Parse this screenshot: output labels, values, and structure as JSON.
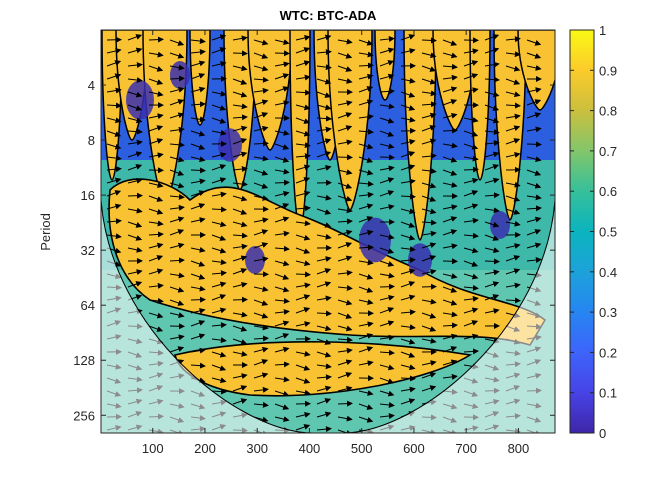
{
  "chart_data": {
    "type": "heatmap",
    "title": "WTC: BTC-ADA",
    "xlabel": "",
    "ylabel": "Period",
    "x_ticks": [
      100,
      200,
      300,
      400,
      500,
      600,
      700,
      800
    ],
    "x_range": [
      1,
      870
    ],
    "y_ticks": [
      4,
      8,
      16,
      32,
      64,
      128,
      256
    ],
    "y_scale": "log2",
    "y_range": [
      2,
      320
    ],
    "y_reversed": true,
    "colorbar": {
      "range": [
        0,
        1
      ],
      "ticks": [
        0,
        0.1,
        0.2,
        0.3,
        0.4,
        0.5,
        0.6,
        0.7,
        0.8,
        0.9,
        1
      ],
      "colormap": "parula"
    },
    "significance_contour": "black outline",
    "phase_arrows": "mostly pointing right (in-phase)",
    "cone_of_influence": "shaded, bowl-shaped"
  },
  "colors": {
    "high_coherence": "#f9c232",
    "mid_coherence": "#3eb8a8",
    "low_coherence": "#2c5fe0",
    "very_low": "#3a2fb0",
    "coi_shade": "#ffffff"
  }
}
